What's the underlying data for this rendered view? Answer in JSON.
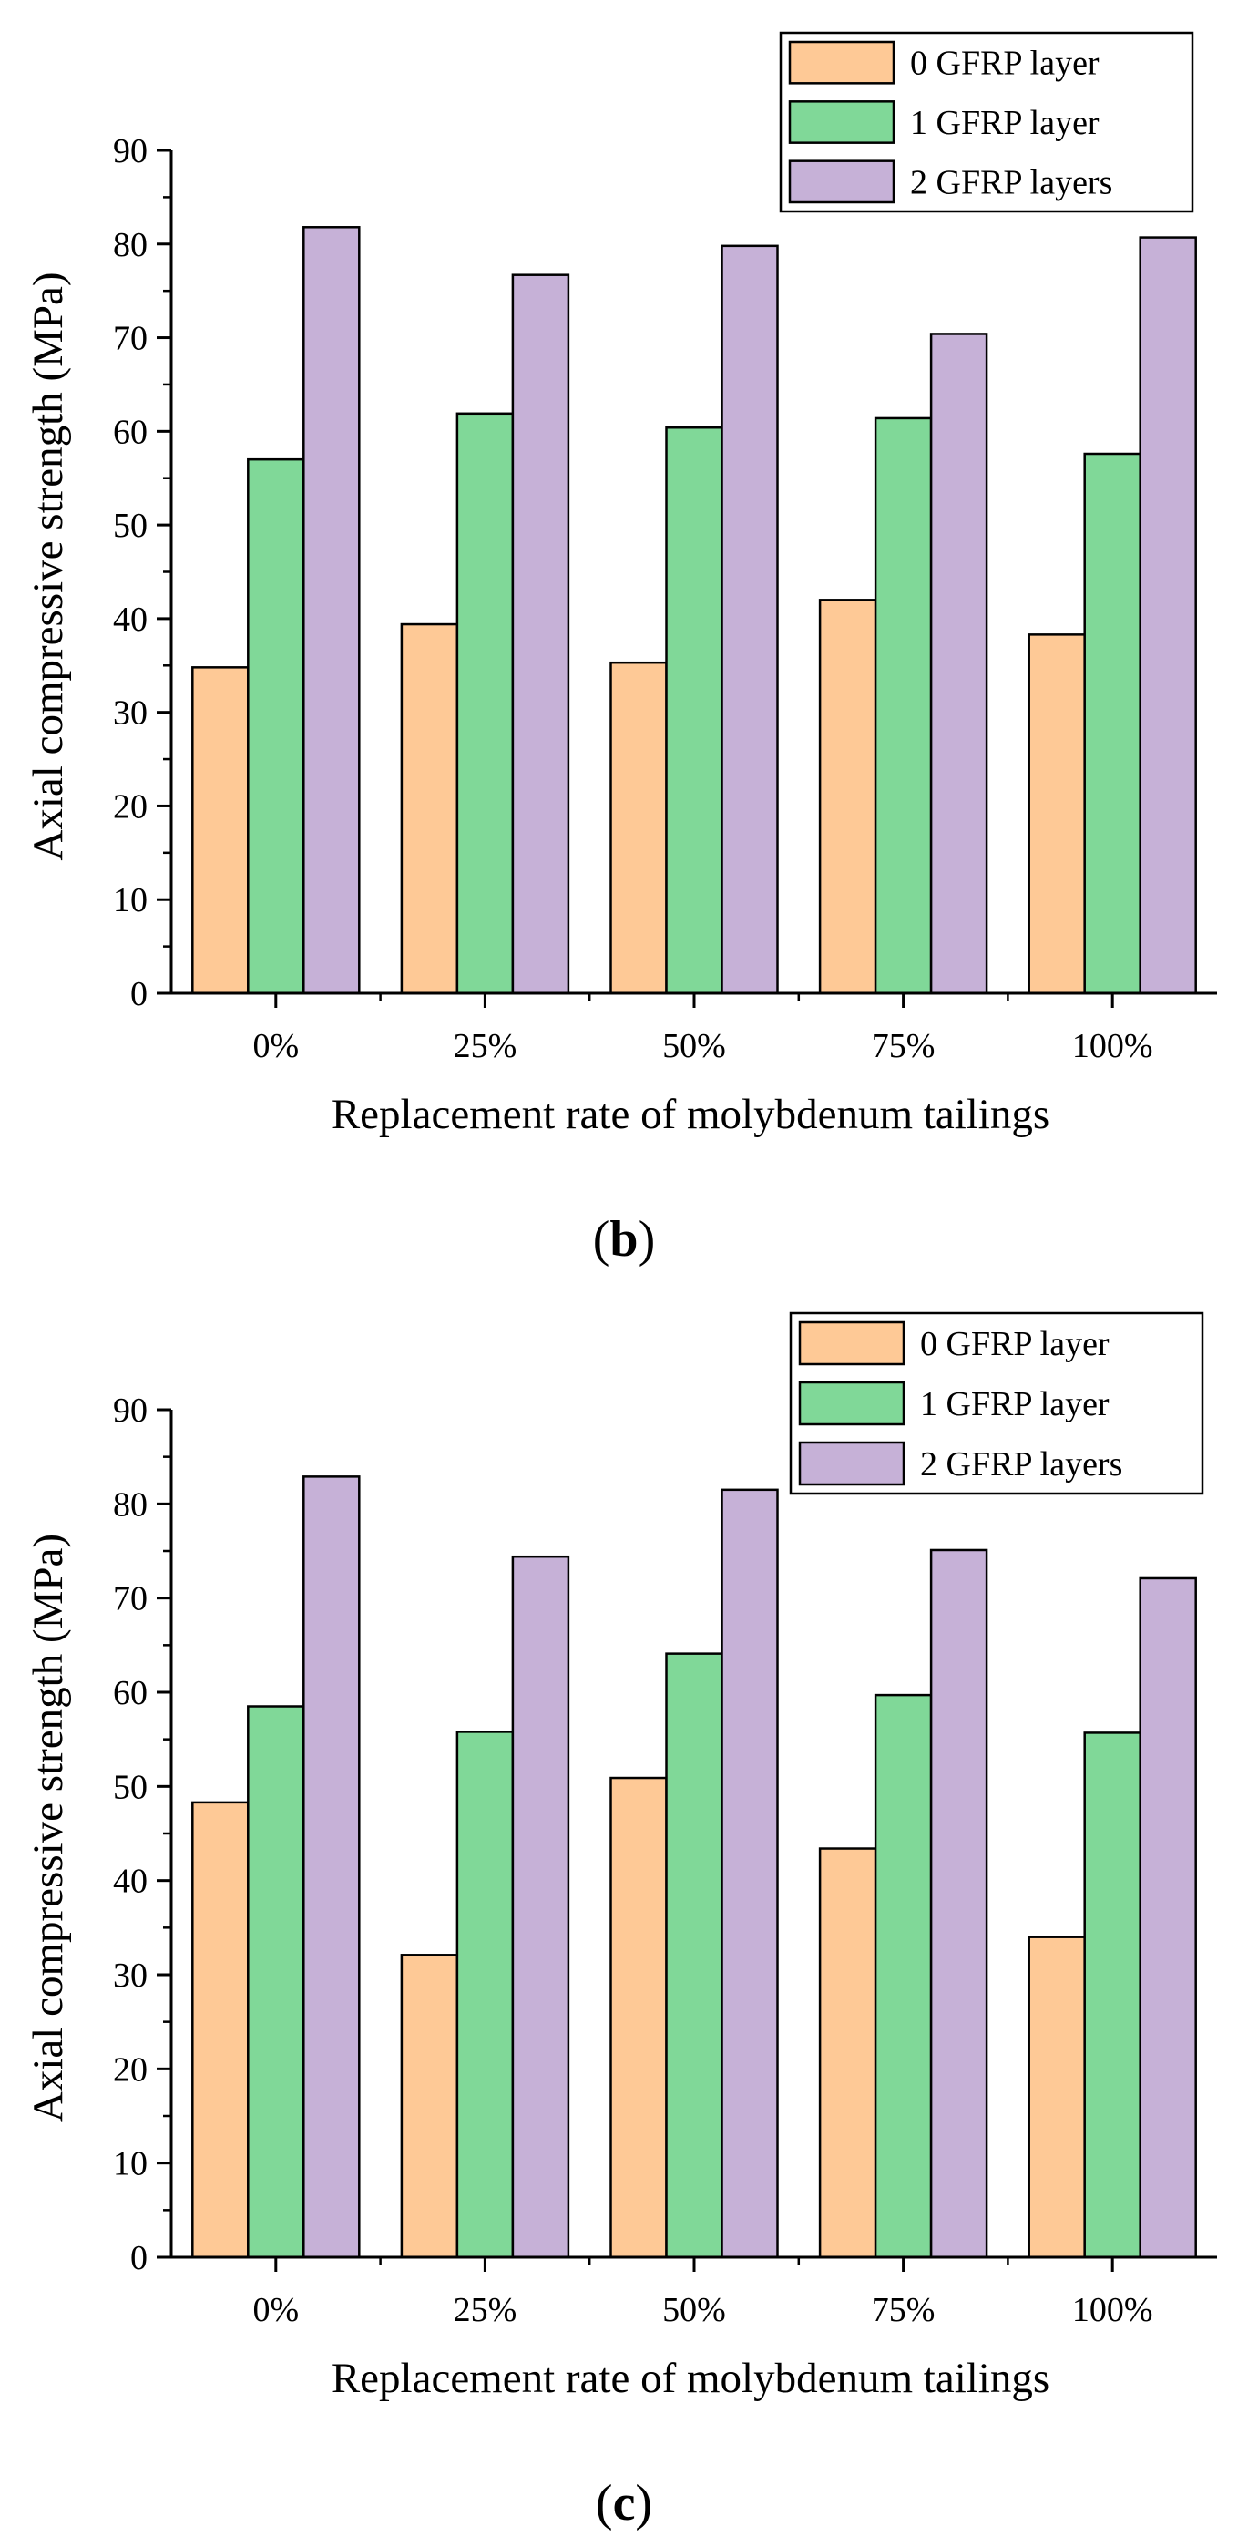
{
  "chart_data": [
    {
      "type": "bar",
      "panel_label": "b",
      "categories": [
        "0%",
        "25%",
        "50%",
        "75%",
        "100%"
      ],
      "series": [
        {
          "name": "0 GFRP layer",
          "color": "#FEC996",
          "values": [
            34.8,
            39.4,
            35.3,
            42.0,
            38.3
          ]
        },
        {
          "name": "1 GFRP layer",
          "color": "#80D898",
          "values": [
            57.0,
            61.9,
            60.4,
            61.4,
            57.6
          ]
        },
        {
          "name": "2 GFRP layers",
          "color": "#C6B1D7",
          "values": [
            81.8,
            76.7,
            79.8,
            70.4,
            80.7
          ]
        }
      ],
      "title": "",
      "xlabel": "Replacement rate of molybdenum tailings",
      "ylabel": "Axial compressive strength (MPa)",
      "ylim": [
        0,
        90
      ],
      "yticks": [
        0,
        10,
        20,
        30,
        40,
        50,
        60,
        70,
        80,
        90
      ],
      "legend_position": "top-right",
      "grid": false
    },
    {
      "type": "bar",
      "panel_label": "c",
      "categories": [
        "0%",
        "25%",
        "50%",
        "75%",
        "100%"
      ],
      "series": [
        {
          "name": "0 GFRP layer",
          "color": "#FEC996",
          "values": [
            48.3,
            32.1,
            50.9,
            43.4,
            34.0
          ]
        },
        {
          "name": "1 GFRP layer",
          "color": "#80D898",
          "values": [
            58.5,
            55.8,
            64.1,
            59.7,
            55.7
          ]
        },
        {
          "name": "2 GFRP layers",
          "color": "#C6B1D7",
          "values": [
            82.9,
            74.4,
            81.5,
            75.1,
            72.1
          ]
        }
      ],
      "title": "",
      "xlabel": "Replacement rate of molybdenum tailings",
      "ylabel": "Axial compressive strength (MPa)",
      "ylim": [
        0,
        90
      ],
      "yticks": [
        0,
        10,
        20,
        30,
        40,
        50,
        60,
        70,
        80,
        90
      ],
      "legend_position": "top-right",
      "grid": false
    }
  ]
}
